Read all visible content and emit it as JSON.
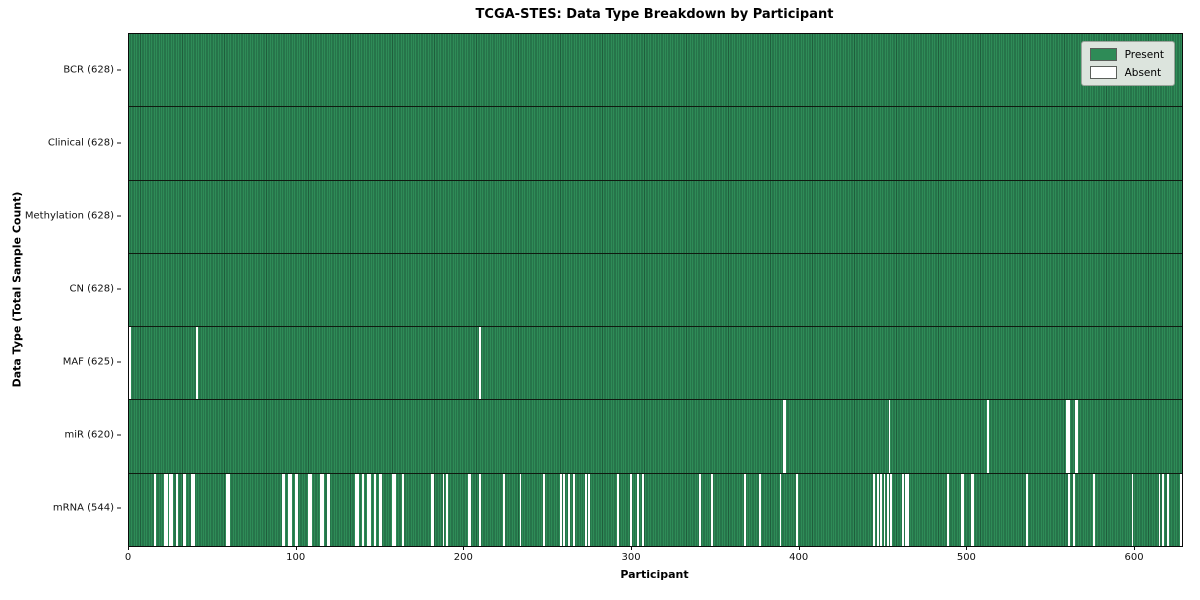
{
  "title": "TCGA-STES: Data Type Breakdown by Participant",
  "x_axis_label": "Participant",
  "y_axis_label": "Data Type (Total Sample Count)",
  "legend": {
    "present_label": "Present",
    "absent_label": "Absent"
  },
  "colors": {
    "present": "#2e8b57",
    "present_edge": "#1f5e3c",
    "absent": "#ffffff",
    "legend_background": "#dce4dd"
  },
  "chart_data": {
    "type": "heatmap",
    "title": "TCGA-STES: Data Type Breakdown by Participant",
    "xlabel": "Participant",
    "ylabel": "Data Type (Total Sample Count)",
    "legend_entries": [
      "Present",
      "Absent"
    ],
    "legend_position": "upper right",
    "grid": false,
    "n_participants": 628,
    "x_range": [
      0,
      628
    ],
    "x_ticks": [
      0,
      100,
      200,
      300,
      400,
      500,
      600
    ],
    "rows": [
      {
        "data_type": "BCR",
        "label": "BCR (628)",
        "present_count": 628,
        "absent_count": 0,
        "absent_participants": []
      },
      {
        "data_type": "Clinical",
        "label": "Clinical (628)",
        "present_count": 628,
        "absent_count": 0,
        "absent_participants": []
      },
      {
        "data_type": "Methylation",
        "label": "Methylation (628)",
        "present_count": 628,
        "absent_count": 0,
        "absent_participants": []
      },
      {
        "data_type": "CN",
        "label": "CN (628)",
        "present_count": 628,
        "absent_count": 0,
        "absent_participants": []
      },
      {
        "data_type": "MAF",
        "label": "MAF (625)",
        "present_count": 625,
        "absent_count": 3,
        "absent_participants": [
          0,
          40,
          209
        ]
      },
      {
        "data_type": "miR",
        "label": "miR (620)",
        "present_count": 620,
        "absent_count": 8,
        "absent_participants": [
          390,
          391,
          453,
          512,
          559,
          560,
          564,
          565
        ]
      },
      {
        "data_type": "mRNA",
        "label": "mRNA (544)",
        "present_count": 544,
        "absent_count": 84,
        "absent_participants": [
          15,
          21,
          22,
          24,
          25,
          28,
          32,
          33,
          37,
          38,
          58,
          59,
          91,
          92,
          95,
          96,
          99,
          100,
          107,
          108,
          114,
          115,
          118,
          119,
          135,
          136,
          139,
          142,
          143,
          146,
          149,
          150,
          157,
          158,
          163,
          180,
          181,
          187,
          189,
          202,
          203,
          209,
          223,
          233,
          247,
          257,
          259,
          262,
          265,
          272,
          274,
          291,
          299,
          303,
          306,
          340,
          347,
          367,
          376,
          388,
          398,
          444,
          446,
          448,
          450,
          452,
          454,
          461,
          463,
          464,
          488,
          496,
          497,
          502,
          503,
          535,
          560,
          563,
          575,
          598,
          614,
          616,
          619,
          627
        ]
      }
    ]
  }
}
